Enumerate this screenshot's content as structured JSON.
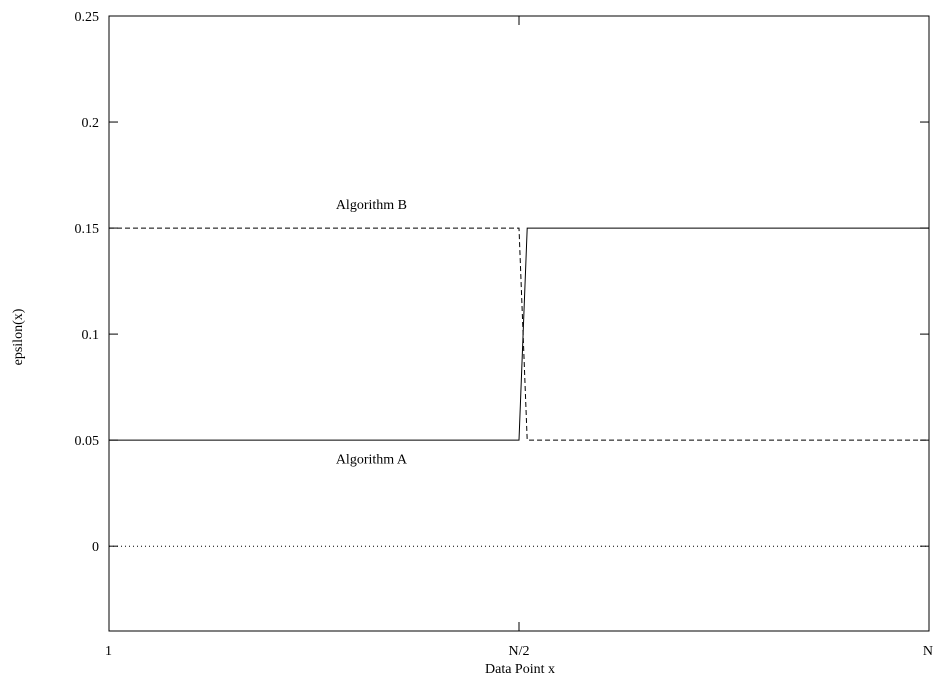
{
  "chart_data": {
    "type": "line",
    "title": "",
    "xlabel": "Data Point x",
    "ylabel": "epsilon(x)",
    "x_ticks": [
      "1",
      "N/2",
      "N"
    ],
    "x_tick_values": [
      0,
      0.5,
      1
    ],
    "y_ticks": [
      "0",
      "0.05",
      "0.1",
      "0.15",
      "0.2",
      "0.25"
    ],
    "y_tick_values": [
      0,
      0.05,
      0.1,
      0.15,
      0.2,
      0.25
    ],
    "xlim": [
      0,
      1
    ],
    "ylim": [
      -0.04,
      0.25
    ],
    "grid": false,
    "series": [
      {
        "name": "Algorithm A",
        "style": "solid",
        "color": "#000000",
        "points": [
          [
            0,
            0.05
          ],
          [
            0.5,
            0.05
          ],
          [
            0.51,
            0.15
          ],
          [
            1,
            0.15
          ]
        ]
      },
      {
        "name": "Algorithm B",
        "style": "dashed",
        "color": "#000000",
        "points": [
          [
            0,
            0.15
          ],
          [
            0.5,
            0.15
          ],
          [
            0.51,
            0.05
          ],
          [
            1,
            0.05
          ]
        ]
      },
      {
        "name": "",
        "style": "dotted",
        "color": "#000000",
        "points": [
          [
            0,
            0
          ],
          [
            1,
            0
          ]
        ]
      }
    ],
    "annotations": [
      {
        "text": "Algorithm B",
        "x": 0.32,
        "y": 0.159
      },
      {
        "text": "Algorithm A",
        "x": 0.32,
        "y": 0.039
      }
    ]
  }
}
